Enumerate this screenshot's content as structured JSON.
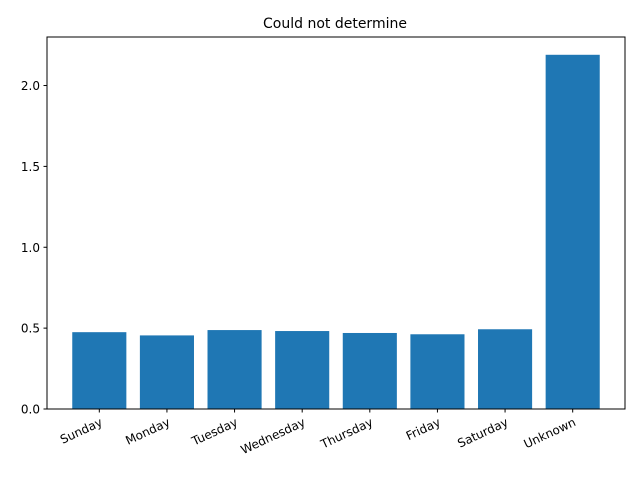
{
  "chart_data": {
    "type": "bar",
    "title": "Could not determine",
    "xlabel": "",
    "ylabel": "",
    "categories": [
      "Sunday",
      "Monday",
      "Tuesday",
      "Wednesday",
      "Thursday",
      "Friday",
      "Saturday",
      "Unknown"
    ],
    "values": [
      0.475,
      0.455,
      0.488,
      0.482,
      0.47,
      0.462,
      0.493,
      2.19
    ],
    "ylim": [
      0,
      2.3
    ],
    "yticks": [
      0.0,
      0.5,
      1.0,
      1.5,
      2.0
    ],
    "ytick_labels": [
      "0.0",
      "0.5",
      "1.0",
      "1.5",
      "2.0"
    ],
    "grid": false,
    "bar_color": "#1f77b4"
  }
}
